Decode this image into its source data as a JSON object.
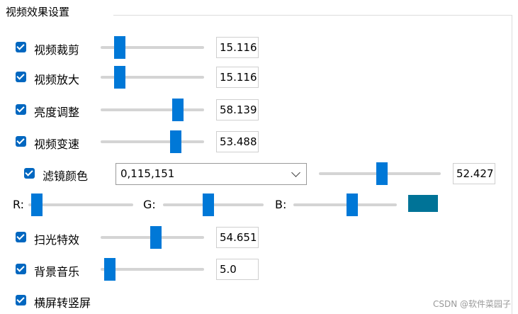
{
  "group": {
    "title": "视频效果设置"
  },
  "rows": [
    {
      "label": "视频裁剪",
      "value": "15.116"
    },
    {
      "label": "视频放大",
      "value": "15.116"
    },
    {
      "label": "亮度调整",
      "value": "58.139"
    },
    {
      "label": "视频变速",
      "value": "53.488"
    }
  ],
  "filter": {
    "label": "滤镜颜色",
    "combo": "0,115,151",
    "value": "52.427"
  },
  "rgb": {
    "r": "R:",
    "g": "G:",
    "b": "B:"
  },
  "rows2": [
    {
      "label": "扫光特效",
      "value": "54.651"
    },
    {
      "label": "背景音乐",
      "value": "5.0"
    }
  ],
  "landscape": {
    "label": "横屏转竖屏"
  },
  "watermark": "CSDN @软件菜园子"
}
